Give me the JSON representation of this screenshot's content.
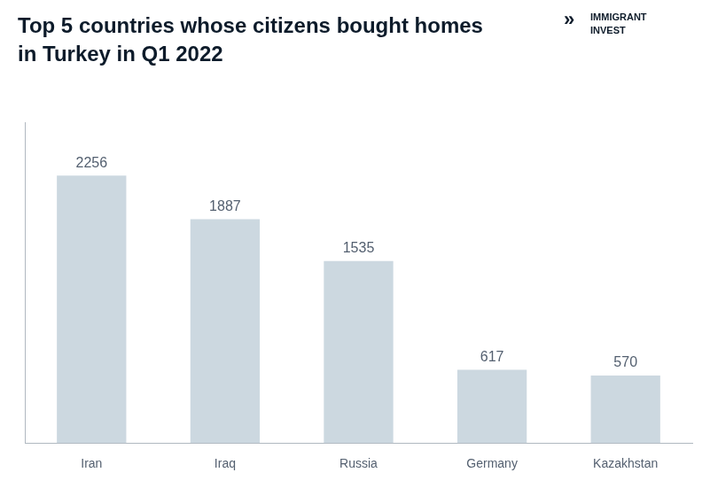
{
  "chart_data": {
    "type": "bar",
    "title": [
      "Top 5 countries whose citizens bought homes",
      "in Turkey in Q1 2022"
    ],
    "annotations": [
      "»",
      "IMMIGRANT",
      "INVEST"
    ],
    "categories": [
      "Iran",
      "Iraq",
      "Russia",
      "Germany",
      "Kazakhstan"
    ],
    "values": [
      2256,
      1887,
      1535,
      617,
      570
    ],
    "color": "#ccd8e0",
    "ylim": [
      0,
      2700
    ],
    "grid": false,
    "data_labels": true,
    "tick_labels": "x"
  }
}
